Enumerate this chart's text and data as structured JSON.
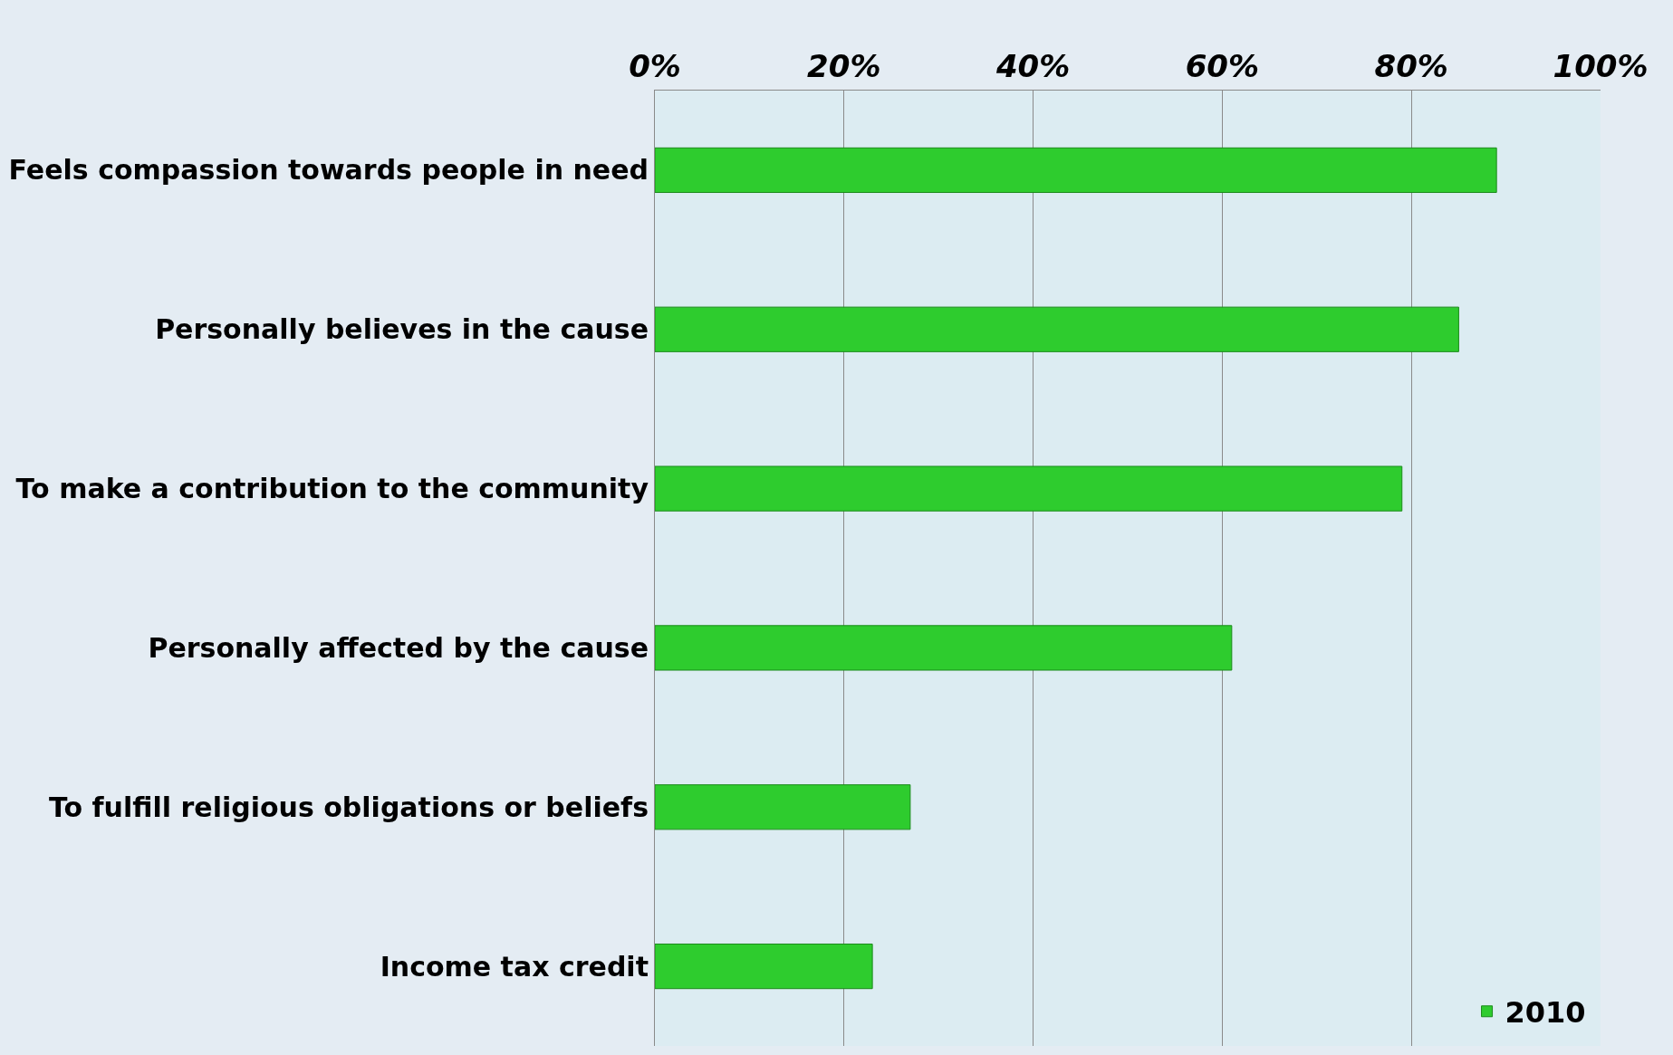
{
  "chart_data": {
    "type": "bar",
    "orientation": "horizontal",
    "categories": [
      "Feels compassion towards people in need",
      "Personally believes in the cause",
      "To make a contribution to the community",
      "Personally affected by the cause",
      "To fulfill religious obligations or beliefs",
      "Income tax credit"
    ],
    "series": [
      {
        "name": "2010",
        "color": "#2ecc2e",
        "values": [
          89,
          85,
          79,
          61,
          27,
          23
        ]
      }
    ],
    "xlim": [
      0,
      100
    ],
    "xticks": [
      {
        "value": 0,
        "label": "0%"
      },
      {
        "value": 20,
        "label": "20%"
      },
      {
        "value": 40,
        "label": "40%"
      },
      {
        "value": 60,
        "label": "60%"
      },
      {
        "value": 80,
        "label": "80%"
      },
      {
        "value": 100,
        "label": "100%"
      }
    ],
    "grid": "x",
    "legend": "bottom right"
  }
}
